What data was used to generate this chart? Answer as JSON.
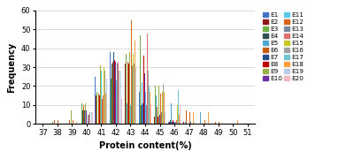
{
  "environments": [
    "E1",
    "E2",
    "E3",
    "E4",
    "E5",
    "E6",
    "E7",
    "E8",
    "E9",
    "E10",
    "E11",
    "E12",
    "E13",
    "E14",
    "E15",
    "E16",
    "E17",
    "E18",
    "E19",
    "E20"
  ],
  "colors": [
    "#4472c4",
    "#8b1a1a",
    "#70ad47",
    "#2f4f4f",
    "#4da6d4",
    "#c55a11",
    "#264e8c",
    "#c00000",
    "#9aad47",
    "#7030a0",
    "#5bc8e8",
    "#d86418",
    "#778899",
    "#e07070",
    "#c8c820",
    "#a0a0a0",
    "#70c4cc",
    "#ffa040",
    "#b8cce8",
    "#f4b8c0"
  ],
  "x_bins": [
    37,
    38,
    39,
    40,
    41,
    42,
    43,
    44,
    45,
    46,
    47,
    48,
    49,
    50,
    51
  ],
  "data": {
    "E1": [
      0,
      0,
      0,
      0,
      25,
      38,
      30,
      17,
      8,
      1,
      0,
      0,
      0,
      0,
      0
    ],
    "E2": [
      0,
      1,
      0,
      5,
      15,
      33,
      32,
      36,
      4,
      1,
      1,
      0,
      0,
      0,
      0
    ],
    "E3": [
      0,
      1,
      2,
      11,
      17,
      24,
      37,
      47,
      20,
      0,
      0,
      0,
      0,
      0,
      0
    ],
    "E4": [
      0,
      0,
      0,
      7,
      24,
      32,
      30,
      10,
      3,
      2,
      0,
      0,
      0,
      0,
      0
    ],
    "E5": [
      0,
      0,
      0,
      0,
      0,
      0,
      11,
      22,
      15,
      11,
      1,
      6,
      1,
      0,
      0
    ],
    "E6": [
      0,
      2,
      2,
      10,
      16,
      33,
      33,
      15,
      9,
      2,
      7,
      6,
      1,
      0,
      0
    ],
    "E7": [
      0,
      0,
      0,
      7,
      25,
      38,
      30,
      11,
      5,
      1,
      0,
      0,
      0,
      0,
      0
    ],
    "E8": [
      0,
      0,
      0,
      6,
      15,
      34,
      32,
      36,
      4,
      2,
      0,
      0,
      0,
      0,
      0
    ],
    "E9": [
      0,
      0,
      7,
      11,
      31,
      32,
      38,
      47,
      20,
      2,
      0,
      0,
      0,
      0,
      0
    ],
    "E10": [
      0,
      0,
      0,
      7,
      28,
      33,
      32,
      27,
      5,
      1,
      0,
      0,
      0,
      0,
      0
    ],
    "E11": [
      0,
      0,
      0,
      0,
      28,
      23,
      10,
      17,
      21,
      1,
      0,
      0,
      1,
      0,
      0
    ],
    "E12": [
      0,
      2,
      2,
      10,
      13,
      38,
      55,
      15,
      16,
      5,
      6,
      2,
      1,
      0,
      0
    ],
    "E13": [
      0,
      0,
      0,
      5,
      24,
      32,
      31,
      10,
      6,
      1,
      1,
      7,
      0,
      0,
      0
    ],
    "E14": [
      0,
      0,
      0,
      5,
      15,
      33,
      51,
      48,
      20,
      2,
      0,
      0,
      0,
      0,
      0
    ],
    "E15": [
      0,
      0,
      0,
      10,
      30,
      33,
      37,
      47,
      17,
      10,
      0,
      0,
      0,
      0,
      0
    ],
    "E16": [
      0,
      0,
      0,
      6,
      28,
      28,
      32,
      28,
      21,
      2,
      0,
      0,
      0,
      0,
      0
    ],
    "E17": [
      0,
      0,
      0,
      0,
      0,
      0,
      44,
      20,
      0,
      18,
      0,
      0,
      0,
      0,
      0
    ],
    "E18": [
      0,
      2,
      1,
      10,
      16,
      33,
      44,
      17,
      17,
      5,
      6,
      6,
      1,
      2,
      1
    ],
    "E19": [
      0,
      0,
      0,
      6,
      24,
      28,
      30,
      28,
      6,
      1,
      1,
      0,
      0,
      0,
      0
    ],
    "E20": [
      0,
      0,
      0,
      6,
      13,
      13,
      32,
      11,
      21,
      10,
      0,
      0,
      0,
      0,
      0
    ]
  },
  "ylim": [
    0,
    60
  ],
  "yticks": [
    0,
    10,
    20,
    30,
    40,
    50,
    60
  ],
  "xlabel": "Protein content(%)",
  "ylabel": "Frequency",
  "grid_color": "#cccccc"
}
